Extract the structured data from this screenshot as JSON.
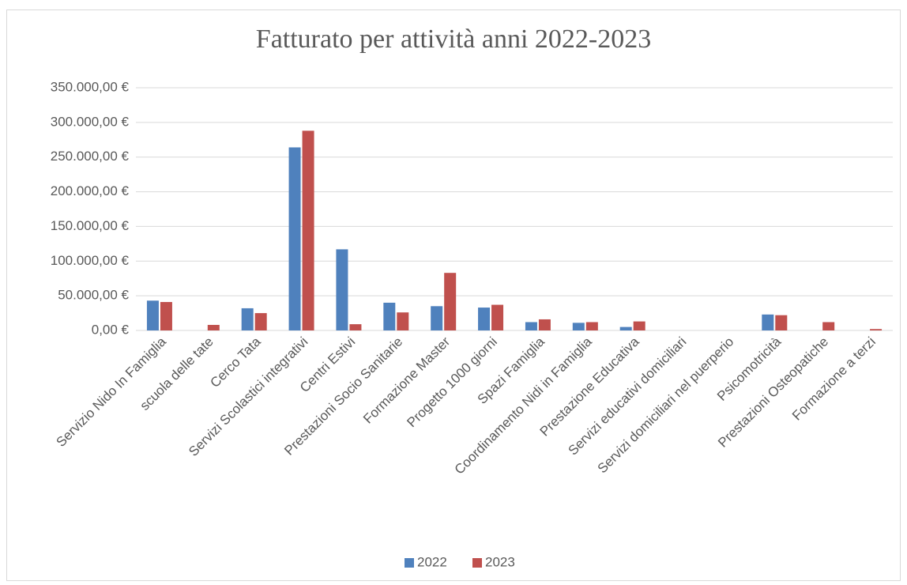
{
  "chart_data": {
    "type": "bar",
    "title": "Fatturato per attività anni 2022-2023",
    "categories": [
      "Servizio Nido In Famiglia",
      "scuola delle tate",
      "Cerco Tata",
      "Servizi Scolastici integrativi",
      "Centri Estivi",
      "Prestazioni Socio Sanitarie",
      "Formazione Master",
      "Progetto 1000 giorni",
      "Spazi Famiglia",
      "Coordinamento Nidi in Famiglia",
      "Prestazione Educativa",
      "Servizi educativi domiciliari",
      "Servizi domiciliari nel puerperio",
      "Psicomotricità",
      "Prestazioni Osteopatiche",
      "Formazione a terzi"
    ],
    "series": [
      {
        "name": "2022",
        "color": "#4f81bd",
        "values": [
          43000,
          0,
          32000,
          264000,
          117000,
          40000,
          35000,
          33000,
          12000,
          11000,
          5000,
          0,
          0,
          23000,
          0,
          0
        ]
      },
      {
        "name": "2023",
        "color": "#c0504d",
        "values": [
          41000,
          8000,
          25000,
          288000,
          9000,
          26000,
          83000,
          37000,
          16000,
          12000,
          13000,
          0,
          0,
          22000,
          12000,
          2000
        ]
      }
    ],
    "ylim": [
      0,
      350000
    ],
    "yticks": [
      {
        "value": 0,
        "label": "0,00 €"
      },
      {
        "value": 50000,
        "label": "50.000,00 €"
      },
      {
        "value": 100000,
        "label": "100.000,00 €"
      },
      {
        "value": 150000,
        "label": "150.000,00 €"
      },
      {
        "value": 200000,
        "label": "200.000,00 €"
      },
      {
        "value": 250000,
        "label": "250.000,00 €"
      },
      {
        "value": 300000,
        "label": "300.000,00 €"
      },
      {
        "value": 350000,
        "label": "350.000,00 €"
      }
    ],
    "grid": true,
    "legend": "bottom"
  }
}
